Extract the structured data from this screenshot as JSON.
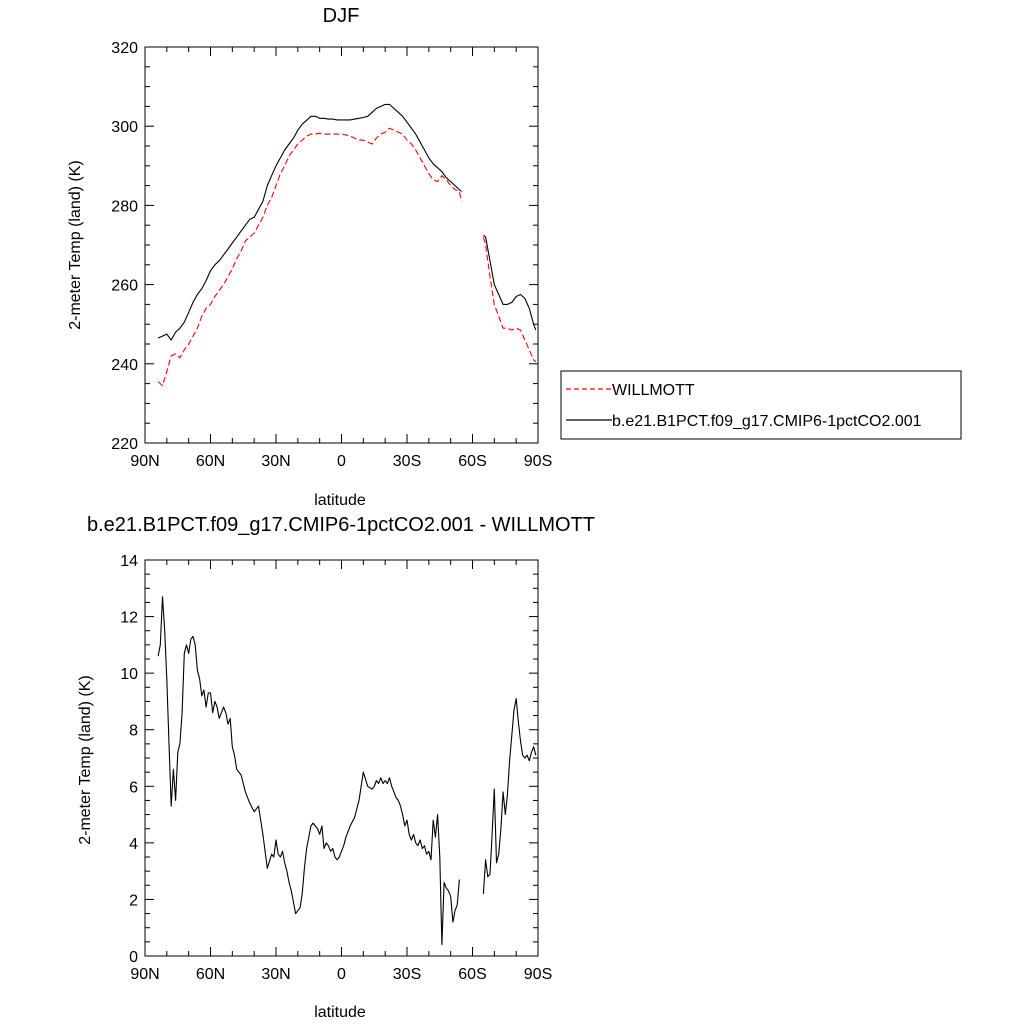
{
  "chart_data": [
    {
      "type": "line",
      "title": "DJF",
      "xlabel": "latitude",
      "ylabel": "2-meter Temp (land) (K)",
      "xlim": [
        90,
        -90
      ],
      "ylim": [
        220,
        320
      ],
      "xticks": [
        90,
        60,
        30,
        0,
        -30,
        -60,
        -90
      ],
      "xtick_labels": [
        "90N",
        "60N",
        "30N",
        "0",
        "30S",
        "60S",
        "90S"
      ],
      "yticks": [
        220,
        240,
        260,
        280,
        300,
        320
      ],
      "ytick_labels": [
        "220",
        "240",
        "260",
        "280",
        "300",
        "320"
      ],
      "grid": false,
      "legend_position": "right",
      "series": [
        {
          "name": "WILLMOTT",
          "color": "#ff0000",
          "dash": "dashed",
          "segments": [
            {
              "x": [
                84,
                82,
                80,
                78,
                76,
                74,
                72,
                70,
                68,
                66,
                64,
                62,
                60,
                58,
                56,
                54,
                52,
                50,
                48,
                46,
                44,
                42,
                40,
                38,
                36,
                34,
                32,
                30,
                28,
                26,
                24,
                22,
                20,
                18,
                16,
                14,
                12,
                10,
                8,
                6,
                4,
                2,
                0,
                -2,
                -4,
                -6,
                -8,
                -10,
                -12,
                -14,
                -16,
                -18,
                -20,
                -22,
                -24,
                -26,
                -28,
                -30,
                -32,
                -34,
                -36,
                -38,
                -40,
                -42,
                -44,
                -46,
                -48,
                -50,
                -52,
                -54,
                -55
              ],
              "y": [
                235.5,
                234.5,
                238,
                242,
                242.5,
                241.5,
                243.5,
                245,
                247,
                249,
                252,
                254,
                255,
                257,
                258.5,
                260,
                262,
                264,
                266.5,
                268.5,
                271,
                272,
                273,
                275,
                277,
                280,
                282,
                285,
                288,
                290,
                292.5,
                294,
                295.5,
                296.5,
                297.5,
                298,
                298,
                298.2,
                298,
                298,
                298,
                298,
                298,
                297.8,
                297.5,
                297,
                296.5,
                296.5,
                296,
                295.5,
                297,
                298,
                298.5,
                299.5,
                299,
                298.5,
                298,
                296.5,
                295.5,
                294,
                292,
                290,
                288,
                286.5,
                286,
                287.5,
                286.5,
                285,
                284,
                283.5,
                281
              ]
            },
            {
              "x": [
                -65,
                -66,
                -68,
                -70,
                -72,
                -74,
                -76,
                -78,
                -80,
                -82,
                -84,
                -86,
                -88,
                -89
              ],
              "y": [
                272,
                270,
                262,
                255,
                252,
                249,
                249,
                248.5,
                249,
                248.5,
                246,
                243.5,
                241,
                240.5
              ]
            }
          ]
        },
        {
          "name": "b.e21.B1PCT.f09_g17.CMIP6-1pctCO2.001",
          "color": "#000000",
          "dash": "solid",
          "segments": [
            {
              "x": [
                84,
                82,
                80,
                78,
                76,
                74,
                72,
                70,
                68,
                66,
                64,
                62,
                60,
                58,
                56,
                54,
                52,
                50,
                48,
                46,
                44,
                42,
                40,
                38,
                36,
                34,
                32,
                30,
                28,
                26,
                24,
                22,
                20,
                18,
                16,
                14,
                12,
                10,
                8,
                6,
                4,
                2,
                0,
                -2,
                -4,
                -6,
                -8,
                -10,
                -12,
                -14,
                -16,
                -18,
                -20,
                -22,
                -24,
                -26,
                -28,
                -30,
                -32,
                -34,
                -36,
                -38,
                -40,
                -42,
                -44,
                -46,
                -48,
                -50,
                -52,
                -54,
                -55
              ],
              "y": [
                246.5,
                247,
                247.5,
                246,
                248,
                249,
                250.5,
                253,
                255.5,
                257.5,
                259,
                261,
                263.5,
                265,
                266,
                267.5,
                269,
                270.5,
                272,
                273.5,
                275,
                276.5,
                277,
                279,
                281,
                285,
                287.5,
                290,
                292,
                294,
                295.5,
                297,
                299,
                300.5,
                301.5,
                302.5,
                302.5,
                302,
                302,
                301.8,
                301.8,
                301.6,
                301.6,
                301.6,
                301.6,
                301.8,
                302,
                302.2,
                302.5,
                303.5,
                304.5,
                305,
                305.5,
                305.5,
                304.5,
                303.5,
                302.5,
                301,
                299.5,
                298,
                296,
                294,
                292,
                290.5,
                289.5,
                288.5,
                287,
                286,
                285,
                284,
                283.5
              ]
            },
            {
              "x": [
                -65,
                -66,
                -68,
                -70,
                -72,
                -74,
                -76,
                -78,
                -80,
                -82,
                -84,
                -86,
                -88,
                -89
              ],
              "y": [
                272.5,
                272,
                266,
                260,
                257.5,
                255,
                255,
                255.5,
                257,
                257.5,
                256.5,
                254,
                250,
                248.5
              ]
            }
          ]
        }
      ]
    },
    {
      "type": "line",
      "title": "b.e21.B1PCT.f09_g17.CMIP6-1pctCO2.001 - WILLMOTT",
      "xlabel": "latitude",
      "ylabel": "2-meter Temp (land) (K)",
      "xlim": [
        90,
        -90
      ],
      "ylim": [
        0,
        14
      ],
      "xticks": [
        90,
        60,
        30,
        0,
        -30,
        -60,
        -90
      ],
      "xtick_labels": [
        "90N",
        "60N",
        "30N",
        "0",
        "30S",
        "60S",
        "90S"
      ],
      "yticks": [
        0,
        2,
        4,
        6,
        8,
        10,
        12,
        14
      ],
      "ytick_labels": [
        "0",
        "2",
        "4",
        "6",
        "8",
        "10",
        "12",
        "14"
      ],
      "grid": false,
      "series": [
        {
          "color": "#000000",
          "dash": "solid",
          "segments": [
            {
              "x": [
                84,
                83,
                82,
                81,
                80,
                79,
                78,
                77,
                76,
                75,
                74,
                73,
                72,
                71,
                70,
                69,
                68,
                67,
                66,
                65,
                64,
                63,
                62,
                61,
                60,
                59,
                58,
                57,
                56,
                55,
                54,
                53,
                52,
                51,
                50,
                49,
                48,
                46,
                44,
                42,
                40,
                38,
                36,
                34,
                32,
                31,
                30,
                29,
                28,
                27,
                26,
                25,
                24,
                23,
                22,
                21,
                20,
                19,
                18,
                17,
                16,
                15,
                14,
                13,
                12,
                11,
                10,
                9,
                8,
                7,
                6,
                5,
                4,
                3,
                2,
                1,
                0,
                -1,
                -2,
                -4,
                -6,
                -8,
                -10,
                -12,
                -14,
                -15,
                -16,
                -17,
                -18,
                -19,
                -20,
                -21,
                -22,
                -23,
                -24,
                -25,
                -26,
                -27,
                -28,
                -29,
                -30,
                -31,
                -32,
                -33,
                -34,
                -35,
                -36,
                -37,
                -38,
                -39,
                -40,
                -41,
                -42,
                -43,
                -44,
                -45,
                -46,
                -47,
                -48,
                -49,
                -50,
                -51,
                -52,
                -53,
                -54
              ],
              "y": [
                10.6,
                11,
                12.7,
                11.5,
                9.8,
                7.5,
                5.3,
                6.6,
                5.5,
                7.2,
                7.5,
                8.6,
                10.7,
                11,
                10.7,
                11.2,
                11.3,
                11,
                10.1,
                9.8,
                9.2,
                9.4,
                8.8,
                9.3,
                9.3,
                8.6,
                9,
                8.8,
                8.4,
                8.6,
                8.8,
                8.6,
                8.2,
                8.4,
                7.4,
                7.1,
                6.6,
                6.4,
                5.8,
                5.4,
                5.1,
                5.3,
                4.3,
                3.1,
                3.6,
                3.5,
                4.1,
                3.6,
                3.5,
                3.7,
                3.3,
                3,
                2.6,
                2.3,
                1.9,
                1.5,
                1.6,
                1.7,
                2.2,
                3.1,
                3.8,
                4.2,
                4.6,
                4.7,
                4.6,
                4.5,
                4.3,
                4.6,
                3.8,
                4,
                3.9,
                3.7,
                3.8,
                3.5,
                3.4,
                3.5,
                3.7,
                3.9,
                4.2,
                4.6,
                4.9,
                5.5,
                6.5,
                6,
                5.9,
                6,
                6.2,
                6.1,
                6.3,
                6.1,
                6.2,
                6.1,
                6.3,
                6,
                5.8,
                5.6,
                5.5,
                5.3,
                5,
                4.6,
                4.8,
                4.3,
                4.1,
                4.3,
                4,
                3.9,
                4.1,
                3.8,
                3.9,
                3.6,
                3.7,
                3.4,
                4.8,
                4.2,
                5,
                3.5,
                0.4,
                2.6,
                2.4,
                2.3,
                2.1,
                1.2,
                1.6,
                1.8,
                2.7
              ]
            },
            {
              "x": [
                -65,
                -66,
                -67,
                -68,
                -69,
                -70,
                -71,
                -72,
                -73,
                -74,
                -75,
                -76,
                -77,
                -78,
                -79,
                -80,
                -81,
                -82,
                -83,
                -84,
                -85,
                -86,
                -87,
                -88,
                -89
              ],
              "y": [
                2.2,
                3.4,
                2.8,
                2.9,
                4.3,
                5.9,
                3.3,
                3.6,
                4.5,
                5.8,
                5,
                5.7,
                6.9,
                7.8,
                8.7,
                9.1,
                8.3,
                7.6,
                7.1,
                7.0,
                7.1,
                6.9,
                7.2,
                7.4,
                7.1
              ]
            }
          ]
        }
      ]
    }
  ]
}
